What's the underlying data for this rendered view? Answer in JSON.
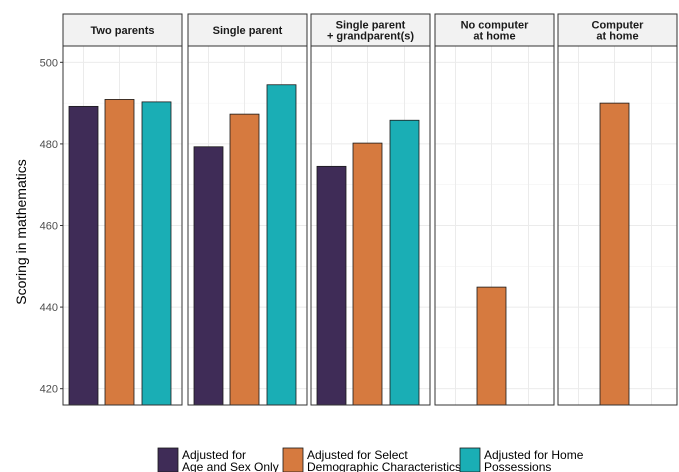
{
  "chart_data": {
    "type": "bar",
    "ylabel": "Scoring in mathematics",
    "xlabel": "",
    "ylim": [
      416,
      504
    ],
    "yticks": [
      420,
      440,
      460,
      480,
      500
    ],
    "grid": true,
    "legend_position": "bottom",
    "panels": [
      {
        "title": [
          "Two parents"
        ],
        "values": [
          489.2,
          490.9,
          490.3
        ]
      },
      {
        "title": [
          "Single parent"
        ],
        "values": [
          479.3,
          487.3,
          494.5
        ]
      },
      {
        "title": [
          "Single parent",
          "+ grandparent(s)"
        ],
        "values": [
          474.5,
          480.2,
          485.8
        ]
      },
      {
        "title": [
          "No computer",
          "at home"
        ],
        "values": [
          null,
          444.9,
          null
        ]
      },
      {
        "title": [
          "Computer",
          "at home"
        ],
        "values": [
          null,
          490.0,
          null
        ]
      }
    ],
    "series": [
      {
        "name": [
          "Adjusted for",
          "Age and Sex Only"
        ],
        "color": "#3f2c57"
      },
      {
        "name": [
          "Adjusted for Select",
          "Demographic Characteristics"
        ],
        "color": "#d67a3f"
      },
      {
        "name": [
          "Adjusted for Home",
          "Possessions"
        ],
        "color": "#1aaeb5"
      }
    ]
  }
}
